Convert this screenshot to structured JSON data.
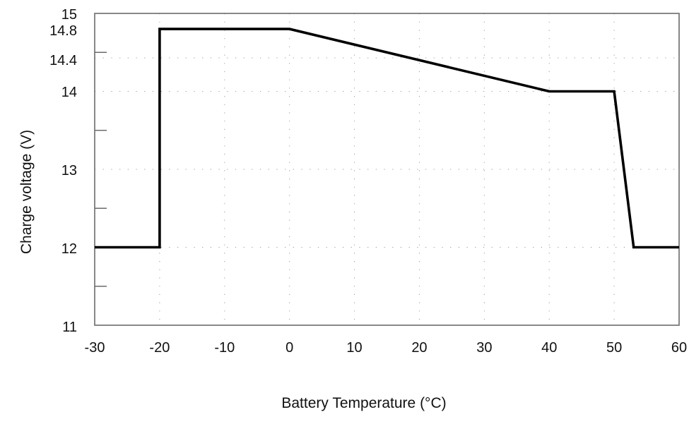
{
  "chart_data": {
    "type": "line",
    "title": "",
    "xlabel": "Battery Temperature (°C)",
    "ylabel": "Charge voltage (V)",
    "xlim": [
      -30,
      60
    ],
    "ylim": [
      11,
      15
    ],
    "grid": "dotted",
    "legend": "none",
    "x_ticks": [
      -30,
      -20,
      -10,
      0,
      10,
      20,
      30,
      40,
      50,
      60
    ],
    "x_tick_labels": [
      "-30",
      "-20",
      "-10",
      "0",
      "10",
      "20",
      "30",
      "40",
      "50",
      "60"
    ],
    "y_tick_labels": [
      {
        "label": "15",
        "value": 15
      },
      {
        "label": "14.8",
        "value": 14.8
      },
      {
        "label": "14.4",
        "value": 14.4
      },
      {
        "label": "14",
        "value": 14
      },
      {
        "label": "13",
        "value": 13
      },
      {
        "label": "12",
        "value": 12
      },
      {
        "label": "11",
        "value": 11
      }
    ],
    "y_minor_ticks": [
      14.5,
      13.5,
      12.5,
      11.5
    ],
    "y_gridlines": [
      14.4,
      14,
      13,
      12
    ],
    "series": [
      {
        "name": "Charge voltage",
        "color": "#000000",
        "points": [
          {
            "x": -30,
            "y": 12
          },
          {
            "x": -20,
            "y": 12
          },
          {
            "x": -20,
            "y": 14.8
          },
          {
            "x": 0,
            "y": 14.8
          },
          {
            "x": 40,
            "y": 14
          },
          {
            "x": 50,
            "y": 14
          },
          {
            "x": 53,
            "y": 12
          },
          {
            "x": 60,
            "y": 12
          }
        ]
      }
    ]
  },
  "colors": {
    "axis": "#6b6b6b",
    "grid": "#9a9a9a",
    "line": "#000000",
    "text": "#111111"
  }
}
